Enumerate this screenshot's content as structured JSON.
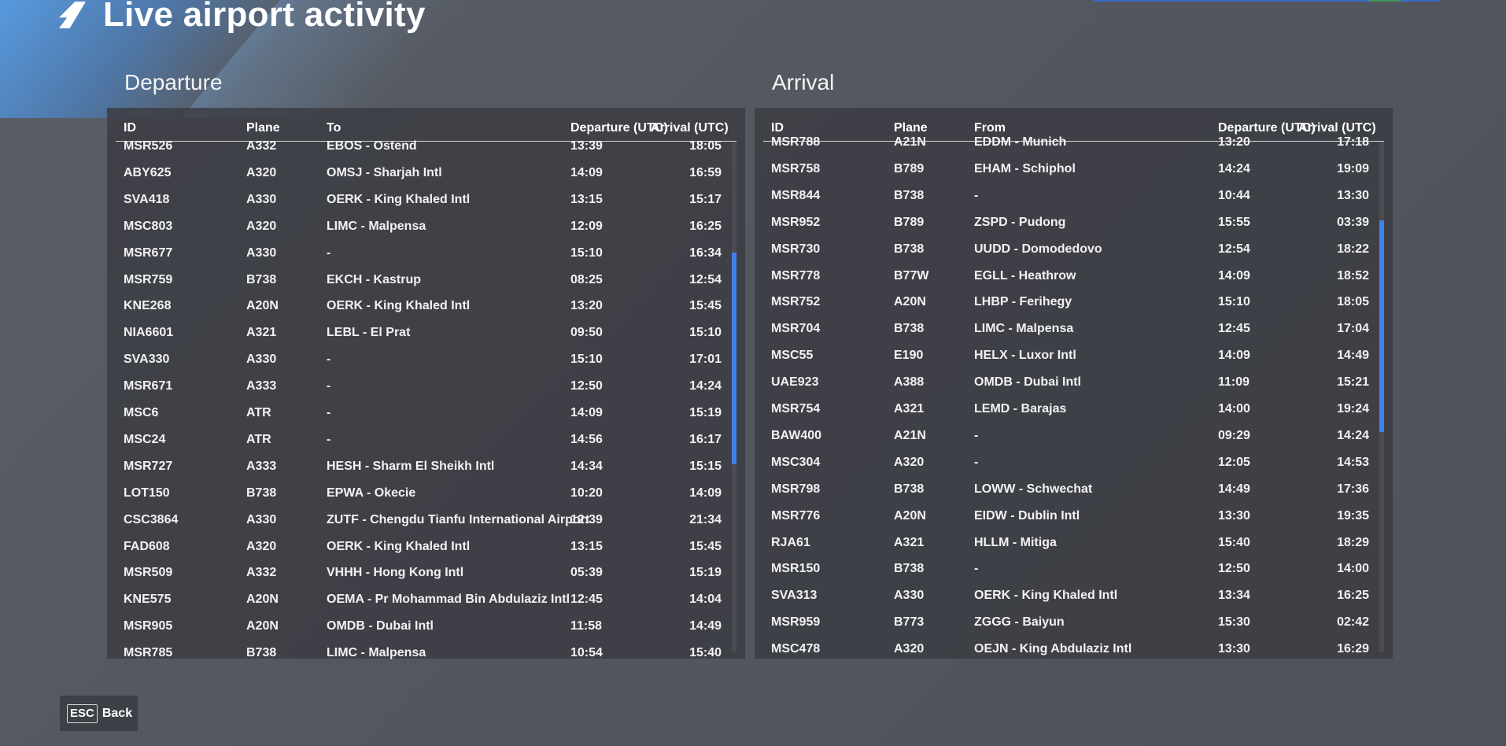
{
  "header": {
    "title": "Live airport activity"
  },
  "departure": {
    "title": "Departure",
    "columns": {
      "id": "ID",
      "plane": "Plane",
      "dest": "To",
      "dep": "Departure (UTC)",
      "arr": "Arrival (UTC)"
    },
    "scroll_fraction": 0.38,
    "rows": [
      {
        "id": "MSR526",
        "plane": "A332",
        "dest": "EBOS - Ostend",
        "dep": "13:39",
        "arr": "18:05"
      },
      {
        "id": "ABY625",
        "plane": "A320",
        "dest": "OMSJ - Sharjah Intl",
        "dep": "14:09",
        "arr": "16:59"
      },
      {
        "id": "SVA418",
        "plane": "A330",
        "dest": "OERK - King Khaled Intl",
        "dep": "13:15",
        "arr": "15:17"
      },
      {
        "id": "MSC803",
        "plane": "A320",
        "dest": "LIMC - Malpensa",
        "dep": "12:09",
        "arr": "16:25"
      },
      {
        "id": "MSR677",
        "plane": "A330",
        "dest": "-",
        "dep": "15:10",
        "arr": "16:34"
      },
      {
        "id": "MSR759",
        "plane": "B738",
        "dest": "EKCH - Kastrup",
        "dep": "08:25",
        "arr": "12:54"
      },
      {
        "id": "KNE268",
        "plane": "A20N",
        "dest": "OERK - King Khaled Intl",
        "dep": "13:20",
        "arr": "15:45"
      },
      {
        "id": "NIA6601",
        "plane": "A321",
        "dest": "LEBL - El Prat",
        "dep": "09:50",
        "arr": "15:10"
      },
      {
        "id": "SVA330",
        "plane": "A330",
        "dest": "-",
        "dep": "15:10",
        "arr": "17:01"
      },
      {
        "id": "MSR671",
        "plane": "A333",
        "dest": "-",
        "dep": "12:50",
        "arr": "14:24"
      },
      {
        "id": "MSC6",
        "plane": "ATR",
        "dest": "-",
        "dep": "14:09",
        "arr": "15:19"
      },
      {
        "id": "MSC24",
        "plane": "ATR",
        "dest": "-",
        "dep": "14:56",
        "arr": "16:17"
      },
      {
        "id": "MSR727",
        "plane": "A333",
        "dest": "HESH - Sharm El Sheikh Intl",
        "dep": "14:34",
        "arr": "15:15"
      },
      {
        "id": "LOT150",
        "plane": "B738",
        "dest": "EPWA - Okecie",
        "dep": "10:20",
        "arr": "14:09"
      },
      {
        "id": "CSC3864",
        "plane": "A330",
        "dest": "ZUTF - Chengdu Tianfu International Airport",
        "dep": "12:39",
        "arr": "21:34"
      },
      {
        "id": "FAD608",
        "plane": "A320",
        "dest": "OERK - King Khaled Intl",
        "dep": "13:15",
        "arr": "15:45"
      },
      {
        "id": "MSR509",
        "plane": "A332",
        "dest": "VHHH - Hong Kong Intl",
        "dep": "05:39",
        "arr": "15:19"
      },
      {
        "id": "KNE575",
        "plane": "A20N",
        "dest": "OEMA - Pr Mohammad Bin Abdulaziz Intl",
        "dep": "12:45",
        "arr": "14:04"
      },
      {
        "id": "MSR905",
        "plane": "A20N",
        "dest": "OMDB - Dubai Intl",
        "dep": "11:58",
        "arr": "14:49"
      },
      {
        "id": "MSR785",
        "plane": "B738",
        "dest": "LIMC - Malpensa",
        "dep": "10:54",
        "arr": "15:40"
      }
    ]
  },
  "arrival": {
    "title": "Arrival",
    "columns": {
      "id": "ID",
      "plane": "Plane",
      "dest": "From",
      "dep": "Departure (UTC)",
      "arr": "Arrival (UTC)"
    },
    "scroll_fraction": 0.27,
    "rows": [
      {
        "id": "MSR788",
        "plane": "A21N",
        "dest": "EDDM - Munich",
        "dep": "13:20",
        "arr": "17:18"
      },
      {
        "id": "MSR758",
        "plane": "B789",
        "dest": "EHAM - Schiphol",
        "dep": "14:24",
        "arr": "19:09"
      },
      {
        "id": "MSR844",
        "plane": "B738",
        "dest": "-",
        "dep": "10:44",
        "arr": "13:30"
      },
      {
        "id": "MSR952",
        "plane": "B789",
        "dest": "ZSPD - Pudong",
        "dep": "15:55",
        "arr": "03:39"
      },
      {
        "id": "MSR730",
        "plane": "B738",
        "dest": "UUDD - Domodedovo",
        "dep": "12:54",
        "arr": "18:22"
      },
      {
        "id": "MSR778",
        "plane": "B77W",
        "dest": "EGLL - Heathrow",
        "dep": "14:09",
        "arr": "18:52"
      },
      {
        "id": "MSR752",
        "plane": "A20N",
        "dest": "LHBP - Ferihegy",
        "dep": "15:10",
        "arr": "18:05"
      },
      {
        "id": "MSR704",
        "plane": "B738",
        "dest": "LIMC - Malpensa",
        "dep": "12:45",
        "arr": "17:04"
      },
      {
        "id": "MSC55",
        "plane": "E190",
        "dest": "HELX - Luxor Intl",
        "dep": "14:09",
        "arr": "14:49"
      },
      {
        "id": "UAE923",
        "plane": "A388",
        "dest": "OMDB - Dubai Intl",
        "dep": "11:09",
        "arr": "15:21"
      },
      {
        "id": "MSR754",
        "plane": "A321",
        "dest": "LEMD - Barajas",
        "dep": "14:00",
        "arr": "19:24"
      },
      {
        "id": "BAW400",
        "plane": "A21N",
        "dest": "-",
        "dep": "09:29",
        "arr": "14:24"
      },
      {
        "id": "MSC304",
        "plane": "A320",
        "dest": "-",
        "dep": "12:05",
        "arr": "14:53"
      },
      {
        "id": "MSR798",
        "plane": "B738",
        "dest": "LOWW - Schwechat",
        "dep": "14:49",
        "arr": "17:36"
      },
      {
        "id": "MSR776",
        "plane": "A20N",
        "dest": "EIDW - Dublin Intl",
        "dep": "13:30",
        "arr": "19:35"
      },
      {
        "id": "RJA61",
        "plane": "A321",
        "dest": "HLLM - Mitiga",
        "dep": "15:40",
        "arr": "18:29"
      },
      {
        "id": "MSR150",
        "plane": "B738",
        "dest": "-",
        "dep": "12:50",
        "arr": "14:00"
      },
      {
        "id": "SVA313",
        "plane": "A330",
        "dest": "OERK - King Khaled Intl",
        "dep": "13:34",
        "arr": "16:25"
      },
      {
        "id": "MSR959",
        "plane": "B773",
        "dest": "ZGGG - Baiyun",
        "dep": "15:30",
        "arr": "02:42"
      },
      {
        "id": "MSC478",
        "plane": "A320",
        "dest": "OEJN - King Abdulaziz Intl",
        "dep": "13:30",
        "arr": "16:29"
      }
    ]
  },
  "footer": {
    "key": "ESC",
    "label": "Back"
  }
}
